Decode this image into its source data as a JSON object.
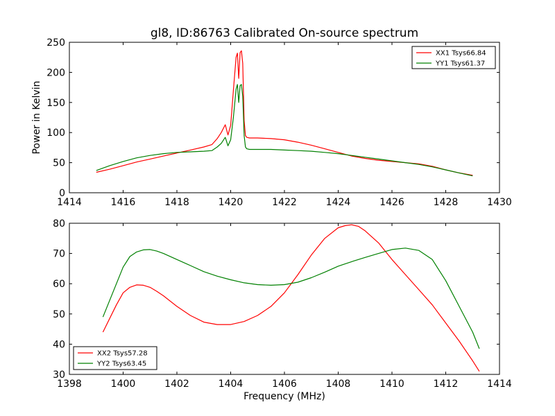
{
  "chart_data": [
    {
      "type": "line",
      "title": "gl8, ID:86763 Calibrated On-source spectrum",
      "ylabel": "Power in Kelvin",
      "xlabel": "",
      "xlim": [
        1414,
        1430
      ],
      "ylim": [
        0,
        250
      ],
      "xticks": [
        "1414",
        "1416",
        "1418",
        "1420",
        "1422",
        "1424",
        "1426",
        "1428",
        "1430"
      ],
      "yticks": [
        "0",
        "50",
        "100",
        "150",
        "200",
        "250"
      ],
      "legend_position": "top-right",
      "series": [
        {
          "name": "XX1 Tsys66.84",
          "color": "#ff0000",
          "x": [
            1415.0,
            1415.5,
            1416.0,
            1416.5,
            1417.0,
            1417.5,
            1418.0,
            1418.5,
            1419.0,
            1419.3,
            1419.5,
            1419.65,
            1419.8,
            1419.9,
            1420.0,
            1420.1,
            1420.2,
            1420.25,
            1420.3,
            1420.35,
            1420.4,
            1420.45,
            1420.5,
            1420.55,
            1420.6,
            1420.7,
            1421.0,
            1421.5,
            1422.0,
            1422.5,
            1423.0,
            1423.5,
            1424.0,
            1424.5,
            1425.0,
            1425.5,
            1426.0,
            1426.5,
            1427.0,
            1427.5,
            1428.0,
            1428.5,
            1429.0
          ],
          "y": [
            34,
            39,
            45,
            51,
            56,
            61,
            66,
            71,
            76,
            80,
            90,
            100,
            113,
            96,
            112,
            170,
            225,
            232,
            190,
            233,
            236,
            215,
            120,
            95,
            92,
            91,
            91,
            90,
            88,
            84,
            79,
            73,
            67,
            61,
            57,
            54,
            52,
            50,
            48,
            44,
            38,
            33,
            29
          ]
        },
        {
          "name": "YY1 Tsys61.37",
          "color": "#008000",
          "x": [
            1415.0,
            1415.5,
            1416.0,
            1416.5,
            1417.0,
            1417.5,
            1418.0,
            1418.5,
            1419.0,
            1419.3,
            1419.5,
            1419.65,
            1419.8,
            1419.9,
            1420.0,
            1420.1,
            1420.2,
            1420.25,
            1420.3,
            1420.35,
            1420.4,
            1420.45,
            1420.5,
            1420.55,
            1420.6,
            1420.7,
            1421.0,
            1421.5,
            1422.0,
            1422.5,
            1423.0,
            1423.5,
            1424.0,
            1424.5,
            1425.0,
            1425.5,
            1426.0,
            1426.5,
            1427.0,
            1427.5,
            1428.0,
            1428.5,
            1429.0
          ],
          "y": [
            37,
            45,
            52,
            58,
            62,
            65,
            67,
            68,
            69,
            70,
            76,
            82,
            92,
            78,
            88,
            125,
            172,
            180,
            150,
            178,
            180,
            160,
            95,
            76,
            73,
            72,
            72,
            72,
            71,
            70,
            69,
            67,
            65,
            62,
            59,
            56,
            53,
            50,
            47,
            43,
            38,
            33,
            28
          ]
        }
      ]
    },
    {
      "type": "line",
      "title": "",
      "xlabel": "Frequency (MHz)",
      "ylabel": "",
      "xlim": [
        1398,
        1414
      ],
      "ylim": [
        30,
        80
      ],
      "xticks": [
        "1398",
        "1400",
        "1402",
        "1404",
        "1406",
        "1408",
        "1410",
        "1412",
        "1414"
      ],
      "yticks": [
        "30",
        "40",
        "50",
        "60",
        "70",
        "80"
      ],
      "legend_position": "lower-left",
      "series": [
        {
          "name": "XX2 Tsys57.28",
          "color": "#ff0000",
          "x": [
            1399.25,
            1399.5,
            1399.75,
            1400.0,
            1400.25,
            1400.5,
            1400.75,
            1401.0,
            1401.25,
            1401.5,
            1402.0,
            1402.5,
            1403.0,
            1403.5,
            1404.0,
            1404.5,
            1405.0,
            1405.5,
            1406.0,
            1406.5,
            1407.0,
            1407.5,
            1408.0,
            1408.25,
            1408.5,
            1408.75,
            1409.0,
            1409.5,
            1410.0,
            1410.5,
            1411.0,
            1411.5,
            1412.0,
            1412.5,
            1413.0,
            1413.25
          ],
          "y": [
            44,
            48.5,
            53,
            57,
            58.8,
            59.6,
            59.5,
            58.8,
            57.5,
            56,
            52.5,
            49.5,
            47.3,
            46.5,
            46.5,
            47.5,
            49.5,
            52.5,
            57,
            63,
            69.5,
            75,
            78.5,
            79.2,
            79.5,
            79,
            77.5,
            73.5,
            68,
            63,
            58,
            53,
            47,
            41,
            34.5,
            31
          ]
        },
        {
          "name": "YY2 Tsys63.45",
          "color": "#008000",
          "x": [
            1399.25,
            1399.5,
            1399.75,
            1400.0,
            1400.25,
            1400.5,
            1400.75,
            1401.0,
            1401.25,
            1401.5,
            1402.0,
            1402.5,
            1403.0,
            1403.5,
            1404.0,
            1404.5,
            1405.0,
            1405.5,
            1406.0,
            1406.5,
            1407.0,
            1407.5,
            1408.0,
            1408.5,
            1409.0,
            1409.5,
            1410.0,
            1410.5,
            1411.0,
            1411.5,
            1412.0,
            1412.5,
            1413.0,
            1413.25
          ],
          "y": [
            49,
            54.5,
            60,
            65.5,
            69,
            70.5,
            71.2,
            71.3,
            70.8,
            70,
            68,
            66,
            64,
            62.5,
            61.3,
            60.3,
            59.7,
            59.5,
            59.7,
            60.5,
            62,
            63.8,
            65.8,
            67.3,
            68.7,
            70,
            71.3,
            71.8,
            71,
            68,
            61,
            52.5,
            44,
            38.5
          ]
        }
      ]
    }
  ]
}
